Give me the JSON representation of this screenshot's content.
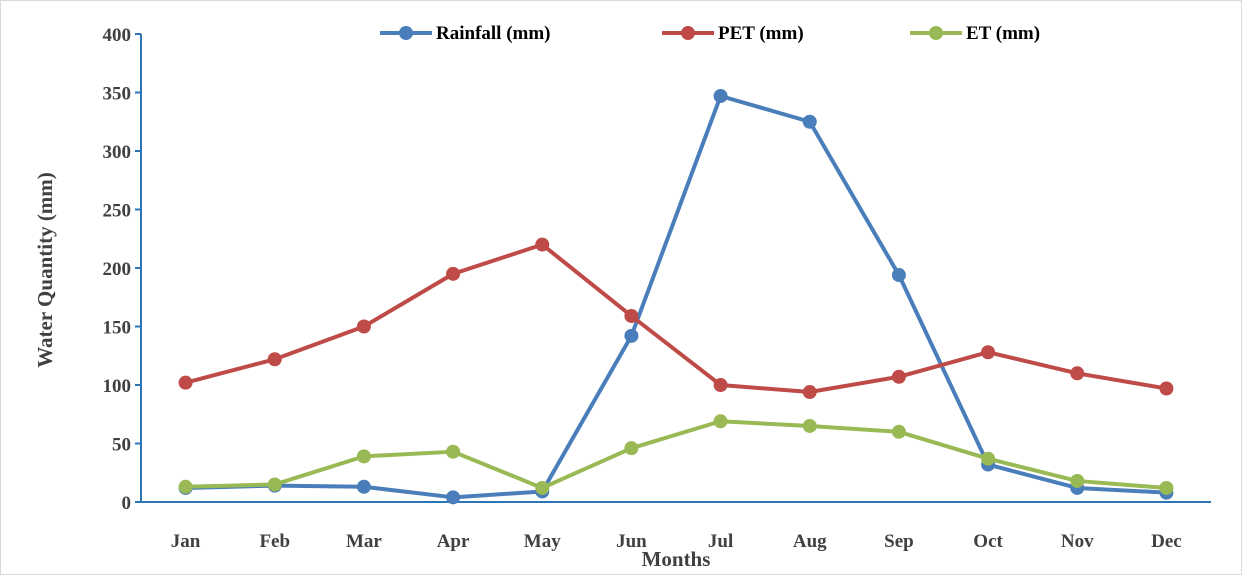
{
  "chart_data": {
    "type": "line",
    "xlabel": "Months",
    "ylabel": "Water Quantity (mm)",
    "ylim": [
      0,
      400
    ],
    "yticks": [
      0,
      50,
      100,
      150,
      200,
      250,
      300,
      350,
      400
    ],
    "categories": [
      "Jan",
      "Feb",
      "Mar",
      "Apr",
      "May",
      "Jun",
      "Jul",
      "Aug",
      "Sep",
      "Oct",
      "Nov",
      "Dec"
    ],
    "grid": false,
    "legend_position": "top",
    "axis_color": "#2e75b6",
    "series": [
      {
        "name": "Rainfall (mm)",
        "color": "#4a7ebb",
        "values": [
          12,
          14,
          13,
          4,
          9,
          142,
          347,
          325,
          194,
          32,
          12,
          8
        ]
      },
      {
        "name": "PET (mm)",
        "color": "#be4b48",
        "values": [
          102,
          122,
          150,
          195,
          220,
          159,
          100,
          94,
          107,
          128,
          110,
          97
        ]
      },
      {
        "name": "ET (mm)",
        "color": "#98b954",
        "values": [
          13,
          15,
          39,
          43,
          12,
          46,
          69,
          65,
          60,
          37,
          18,
          12
        ]
      }
    ]
  }
}
